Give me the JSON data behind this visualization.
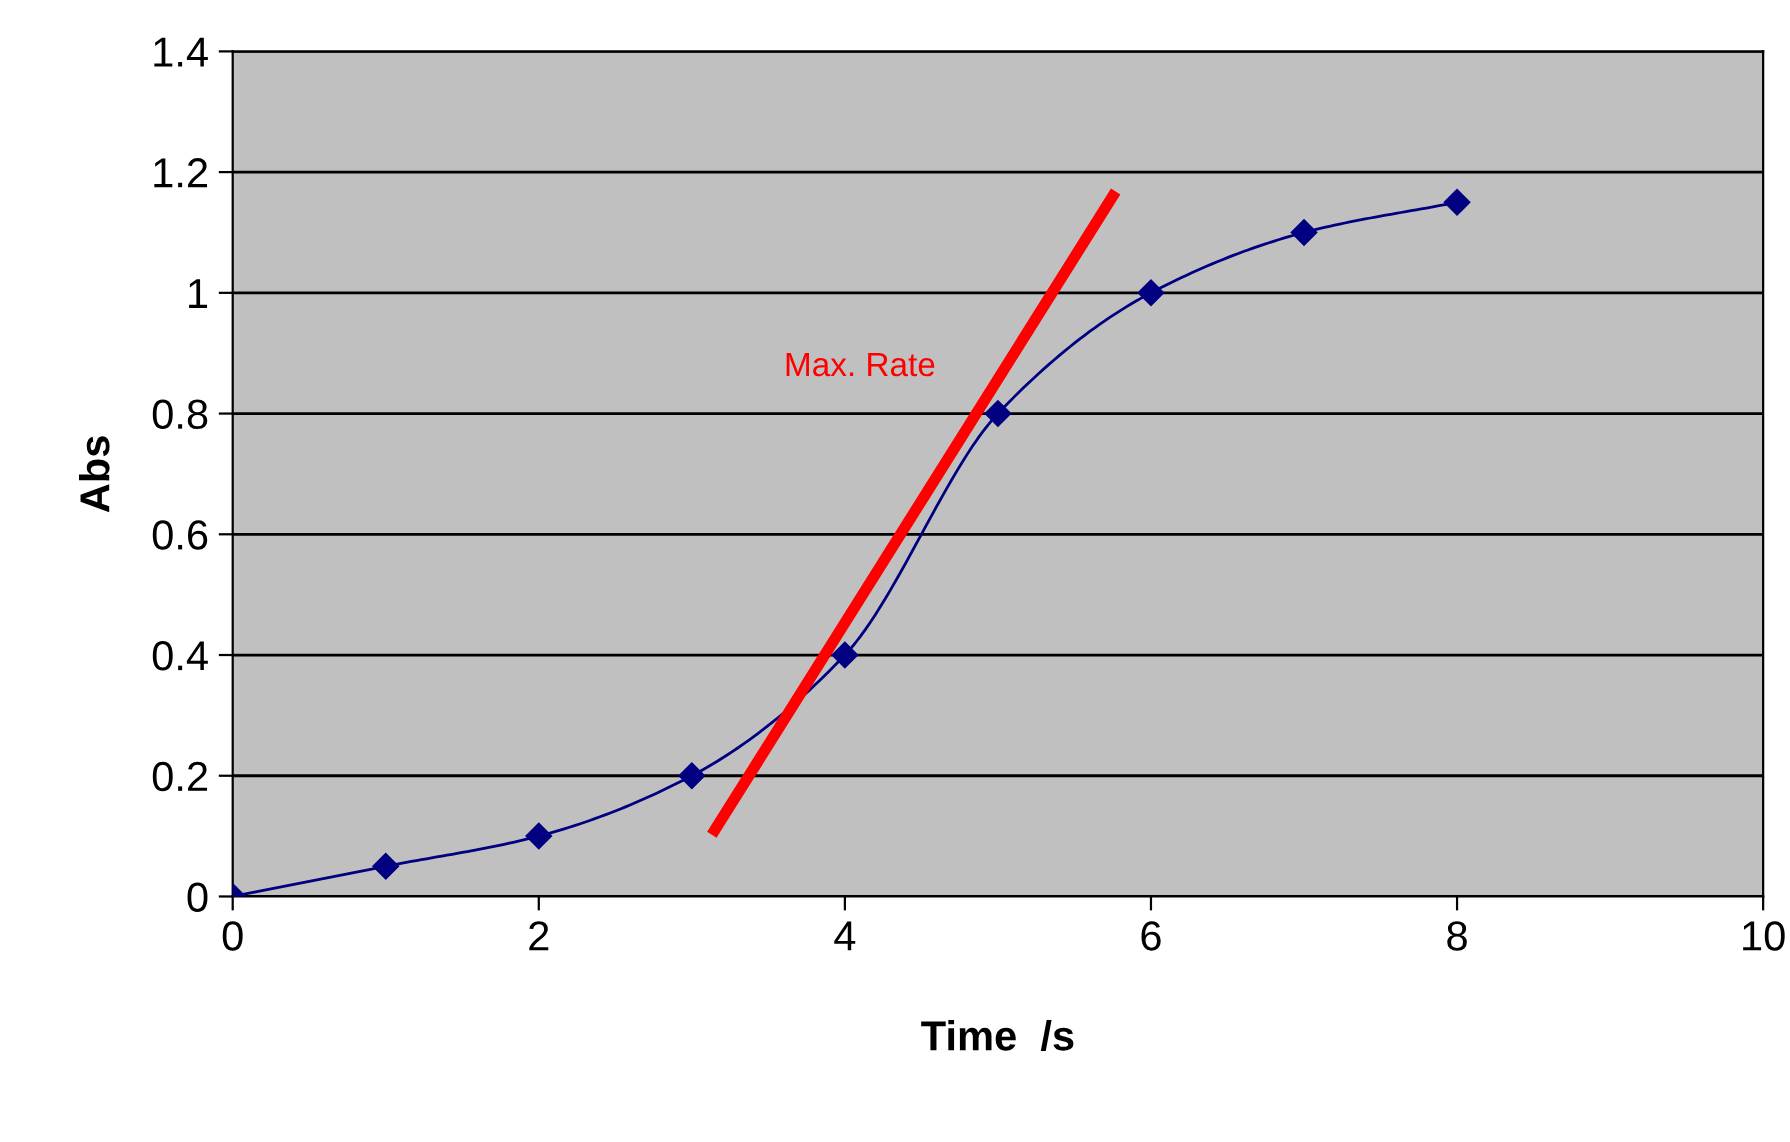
{
  "chart_data": {
    "type": "line",
    "xlabel": "Time  /s",
    "ylabel": "Abs",
    "x": [
      0,
      1,
      2,
      3,
      4,
      5,
      6,
      7,
      8
    ],
    "series": [
      {
        "color": "#000080",
        "values": [
          0,
          0.05,
          0.1,
          0.2,
          0.4,
          0.8,
          1.0,
          1.1,
          1.15
        ],
        "marker": "diamond"
      },
      {
        "name": "Max. Rate",
        "type": "line",
        "color": "#ff0000",
        "x": [
          3.15,
          5.75
        ],
        "values": [
          0.11,
          1.16
        ],
        "marker": "none"
      }
    ],
    "xlim": [
      0,
      10
    ],
    "xticks": [
      0,
      2,
      4,
      6,
      8,
      10
    ],
    "ylim": [
      0,
      1.4
    ],
    "yticks": [
      0,
      0.2,
      0.4,
      0.6,
      0.8,
      1,
      1.2,
      1.4
    ],
    "grid": "y",
    "legend": false,
    "line_style": "solid"
  }
}
